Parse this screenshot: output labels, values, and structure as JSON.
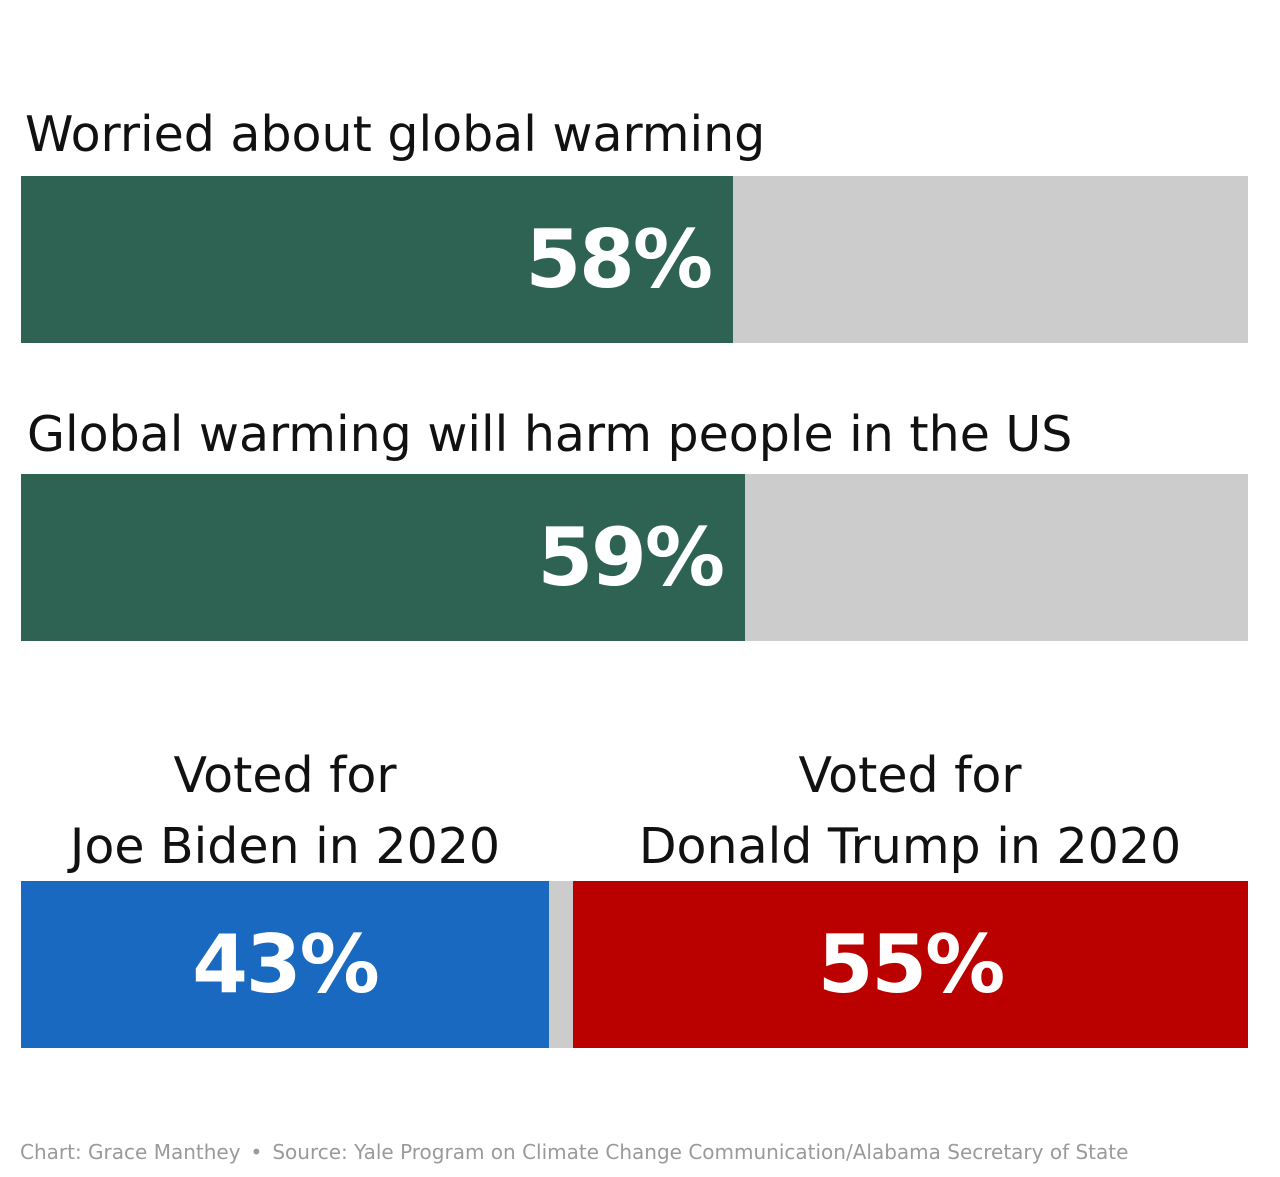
{
  "chart_data": [
    {
      "type": "bar",
      "title": "Worried about global warming",
      "values": [
        58
      ],
      "value_label": "58%",
      "xlim": [
        0,
        100
      ],
      "colors": {
        "fill": "#2e6354",
        "track": "#cccccc"
      }
    },
    {
      "type": "bar",
      "title": "Global warming will harm people in the US",
      "values": [
        59
      ],
      "value_label": "59%",
      "xlim": [
        0,
        100
      ],
      "colors": {
        "fill": "#2e6354",
        "track": "#cccccc"
      }
    },
    {
      "type": "bar",
      "categories": [
        "Voted for Joe Biden in 2020",
        "Voted for Donald Trump in 2020"
      ],
      "category_lines": [
        [
          "Voted for",
          "Joe Biden in 2020"
        ],
        [
          "Voted for",
          "Donald Trump in 2020"
        ]
      ],
      "values": [
        43,
        55
      ],
      "value_labels": [
        "43%",
        "55%"
      ],
      "xlim": [
        0,
        100
      ],
      "colors": {
        "biden": "#1a69c0",
        "trump": "#bb0000",
        "track": "#cccccc"
      }
    }
  ],
  "footer": {
    "chart_credit": "Chart: Grace Manthey",
    "separator": "•",
    "source": "Source: Yale Program on Climate Change Communication/Alabama Secretary of State"
  }
}
